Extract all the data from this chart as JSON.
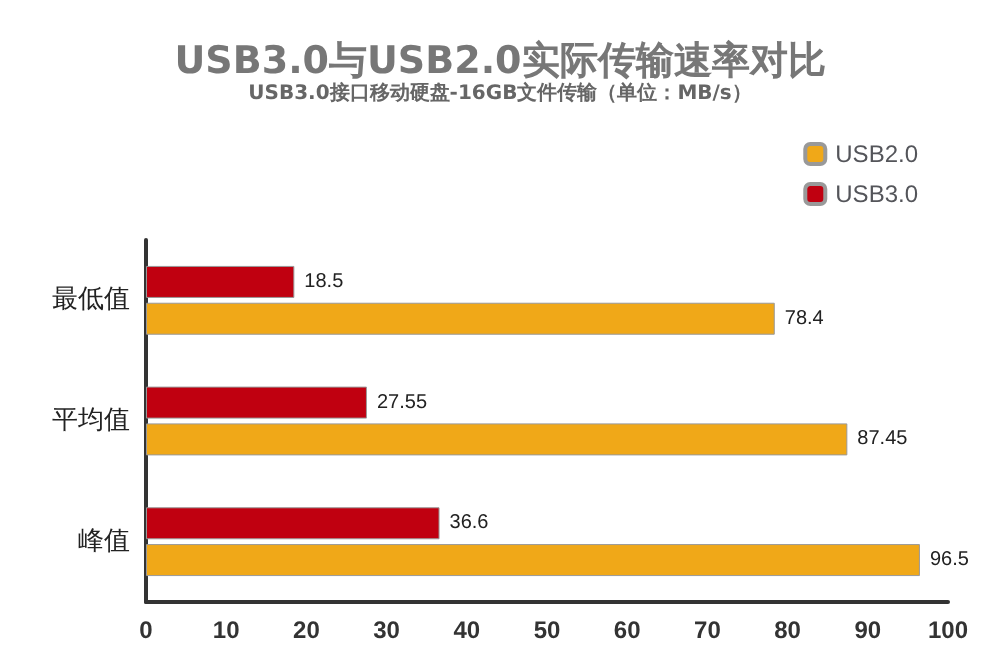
{
  "chart_data": {
    "type": "bar",
    "orientation": "horizontal",
    "title": "USB3.0与USB2.0实际传输速率对比",
    "subtitle": "USB3.0接口移动硬盘-16GB文件传输（单位：MB/s）",
    "categories": [
      "最低值",
      "平均值",
      "峰值"
    ],
    "series": [
      {
        "name": "USB2.0",
        "color": "#f0a818",
        "values": [
          78.4,
          87.45,
          96.5
        ]
      },
      {
        "name": "USB3.0",
        "color": "#c00010",
        "values": [
          18.5,
          27.55,
          36.6
        ]
      }
    ],
    "xlim": [
      0,
      100
    ],
    "xticks": [
      0,
      10,
      20,
      30,
      40,
      50,
      60,
      70,
      80,
      90,
      100
    ],
    "data_labels": true,
    "legend": "top right",
    "grid": false
  }
}
